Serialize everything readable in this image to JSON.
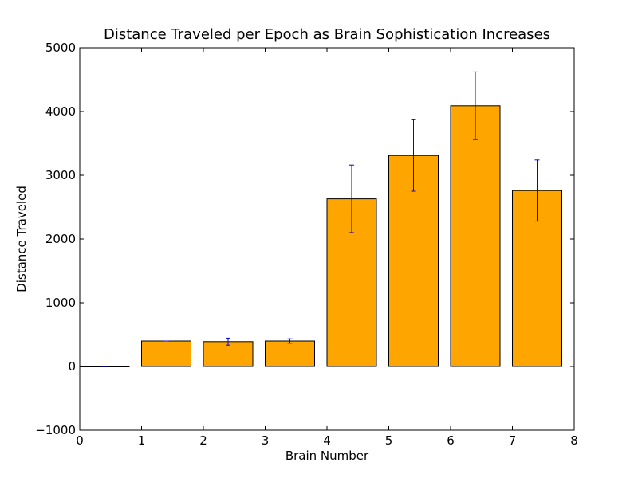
{
  "chart_data": {
    "type": "bar",
    "title": "Distance Traveled per Epoch as Brain Sophistication Increases",
    "xlabel": "Brain Number",
    "ylabel": "Distance Traveled",
    "xlim": [
      0,
      8
    ],
    "ylim": [
      -1000,
      5000
    ],
    "x_ticks": [
      "0",
      "1",
      "2",
      "3",
      "4",
      "5",
      "6",
      "7",
      "8"
    ],
    "y_ticks": [
      "−1000",
      "0",
      "1000",
      "2000",
      "3000",
      "4000",
      "5000"
    ],
    "grid": false,
    "bar_color": "#ffa500",
    "error_color": "#0000ff",
    "bars": [
      {
        "x": 0,
        "value": 0,
        "error": 0
      },
      {
        "x": 1,
        "value": 400,
        "error": 0
      },
      {
        "x": 2,
        "value": 390,
        "error": 55
      },
      {
        "x": 3,
        "value": 400,
        "error": 35
      },
      {
        "x": 4,
        "value": 2630,
        "error": 530
      },
      {
        "x": 5,
        "value": 3310,
        "error": 560
      },
      {
        "x": 6,
        "value": 4090,
        "error": 530
      },
      {
        "x": 7,
        "value": 2760,
        "error": 480
      }
    ]
  }
}
